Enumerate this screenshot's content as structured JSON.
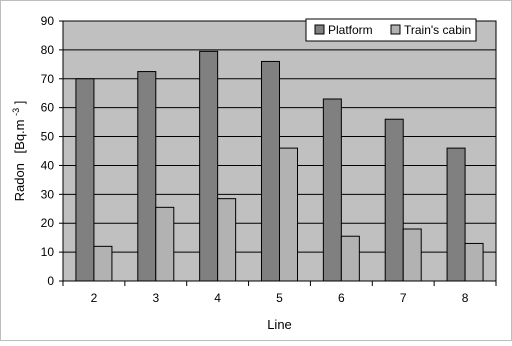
{
  "chart_data": {
    "type": "bar",
    "title": "",
    "xlabel": "Line",
    "ylabel_main": "Radon",
    "ylabel_unit_base": "[Bq.m",
    "ylabel_unit_exp": "-3",
    "ylabel_unit_close": "]",
    "categories": [
      "2",
      "3",
      "4",
      "5",
      "6",
      "7",
      "8"
    ],
    "series": [
      {
        "name": "Platform",
        "values": [
          70,
          72.5,
          79.5,
          76,
          63,
          56,
          46
        ],
        "color": "#808080"
      },
      {
        "name": "Train's cabin",
        "values": [
          12,
          25.5,
          28.5,
          46,
          15.5,
          18,
          13
        ],
        "color": "#b2b2b2"
      }
    ],
    "ylim": [
      0,
      90
    ],
    "yticks": [
      0,
      10,
      20,
      30,
      40,
      50,
      60,
      70,
      80,
      90
    ],
    "grid": true,
    "legend_position": "top-right",
    "plot_background": "#c0c0c0"
  }
}
